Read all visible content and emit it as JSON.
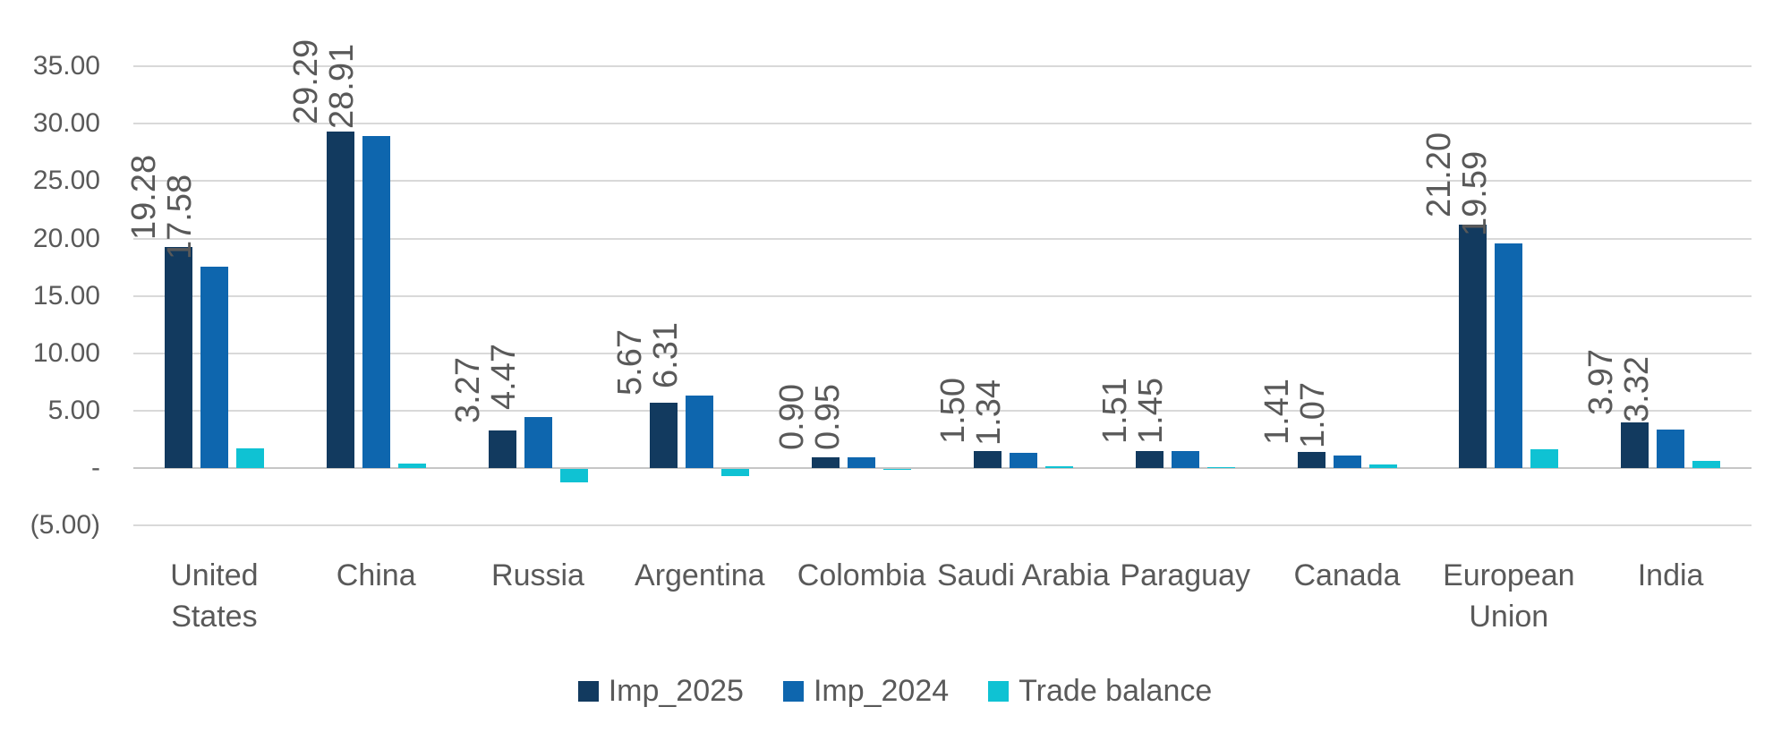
{
  "chart_data": {
    "type": "bar",
    "title": "",
    "xlabel": "",
    "ylabel": "",
    "categories": [
      "United States",
      "China",
      "Russia",
      "Argentina",
      "Colombia",
      "Saudi Arabia",
      "Paraguay",
      "Canada",
      "European Union",
      "India"
    ],
    "series": [
      {
        "name": "Imp_2025",
        "color": "#123A5F",
        "values": [
          19.28,
          29.29,
          3.27,
          5.67,
          0.9,
          1.5,
          1.51,
          1.41,
          21.2,
          3.97
        ],
        "labels": [
          "19.28",
          "29.29",
          "3.27",
          "5.67",
          "0.90",
          "1.50",
          "1.51",
          "1.41",
          "21.20",
          "3.97"
        ],
        "show_labels": true
      },
      {
        "name": "Imp_2024",
        "color": "#0E66AE",
        "values": [
          17.58,
          28.91,
          4.47,
          6.31,
          0.95,
          1.34,
          1.45,
          1.07,
          19.59,
          3.32
        ],
        "labels": [
          "17.58",
          "28.91",
          "4.47",
          "6.31",
          "0.95",
          "1.34",
          "1.45",
          "1.07",
          "19.59",
          "3.32"
        ],
        "show_labels": true
      },
      {
        "name": "Trade balance",
        "color": "#0FC2D3",
        "values": [
          1.7,
          0.38,
          -1.2,
          -0.64,
          -0.05,
          0.16,
          0.06,
          0.34,
          1.61,
          0.65
        ],
        "labels": [],
        "show_labels": false
      }
    ],
    "y_ticks": [
      {
        "value": 35,
        "label": "35.00"
      },
      {
        "value": 30,
        "label": "30.00"
      },
      {
        "value": 25,
        "label": "25.00"
      },
      {
        "value": 20,
        "label": "20.00"
      },
      {
        "value": 15,
        "label": "15.00"
      },
      {
        "value": 10,
        "label": "10.00"
      },
      {
        "value": 5,
        "label": "5.00"
      },
      {
        "value": 0,
        "label": "-"
      },
      {
        "value": -5,
        "label": "(5.00)"
      }
    ],
    "ylim": [
      -5,
      35
    ],
    "grid": true,
    "legend_position": "bottom",
    "colors": {
      "gridline": "#D9D9D9",
      "zero_line": "#C6C6C6",
      "text": "#595959",
      "background": "#FFFFFF"
    }
  }
}
